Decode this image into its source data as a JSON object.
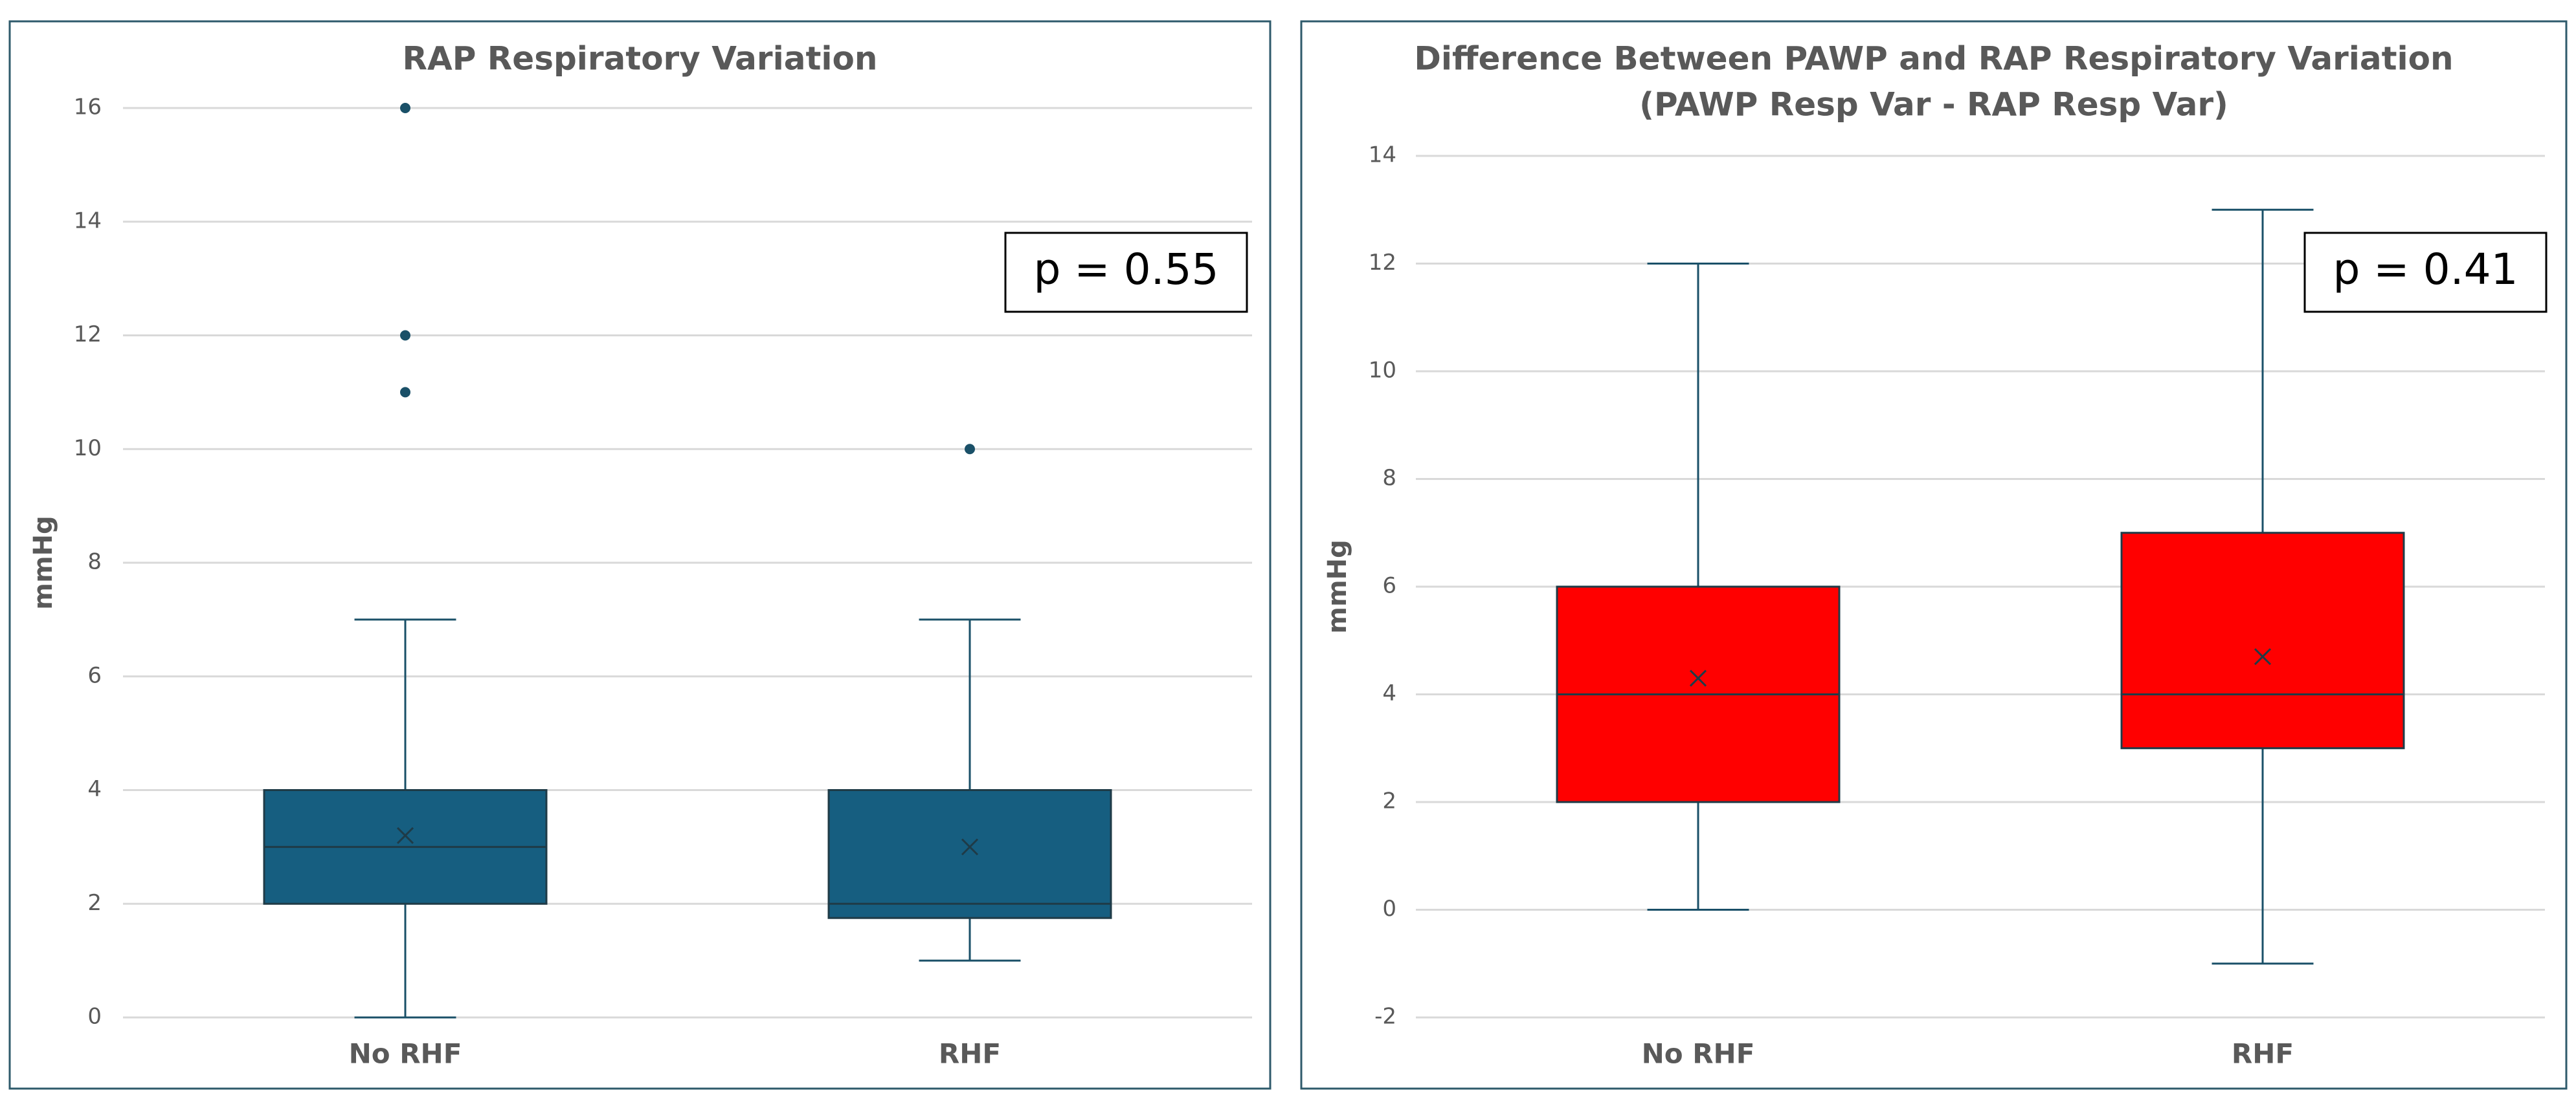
{
  "chart_data": [
    {
      "type": "box",
      "title": "RAP Respiratory Variation",
      "y_label": "mmHg",
      "categories": [
        "No RHF",
        "RHF"
      ],
      "color": "#165e80",
      "boxes": [
        {
          "min": 0,
          "q1": 2,
          "median": 3,
          "q3": 4,
          "max": 7,
          "mean": 3.2,
          "outliers": [
            11,
            12,
            16
          ]
        },
        {
          "min": 1,
          "q1": 1.75,
          "median": 2,
          "q3": 4,
          "max": 7,
          "mean": 3.0,
          "outliers": [
            10
          ]
        }
      ],
      "ylim": [
        0,
        16
      ],
      "yticks": [
        0,
        2,
        4,
        6,
        8,
        10,
        12,
        14,
        16
      ],
      "grid": true,
      "annotation": "p = 0.55"
    },
    {
      "type": "box",
      "title": "Difference Between PAWP and RAP Respiratory Variation",
      "subtitle": "(PAWP Resp Var - RAP Resp Var)",
      "y_label": "mmHg",
      "categories": [
        "No RHF",
        "RHF"
      ],
      "color": "#ff0000",
      "boxes": [
        {
          "min": 0,
          "q1": 2,
          "median": 4,
          "q3": 6,
          "max": 12,
          "mean": 4.3,
          "outliers": []
        },
        {
          "min": -1,
          "q1": 3,
          "median": 4,
          "q3": 7,
          "max": 13,
          "mean": 4.7,
          "outliers": []
        }
      ],
      "ylim": [
        -2,
        14
      ],
      "yticks": [
        -2,
        0,
        2,
        4,
        6,
        8,
        10,
        12,
        14
      ],
      "grid": true,
      "annotation": "p = 0.41"
    }
  ]
}
